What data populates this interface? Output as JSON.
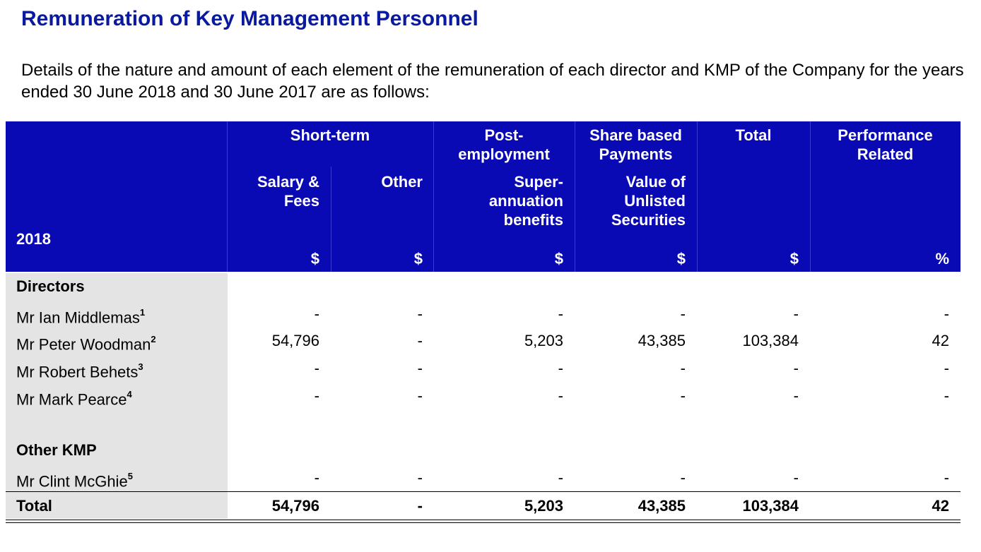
{
  "title": "Remuneration of Key Management Personnel",
  "intro": "Details of the nature and amount of each element of the remuneration of each director and KMP of the Company for the years ended 30 June 2018 and 30 June 2017 are as follows:",
  "header": {
    "year": "2018",
    "groups": {
      "short_term": "Short-term",
      "post_employment": "Post-\nemployment",
      "share_based": "Share based\nPayments",
      "total": "Total",
      "performance": "Performance\nRelated"
    },
    "columns": {
      "salary": "Salary &\nFees",
      "other": "Other",
      "super": "Super-\nannuation\nbenefits",
      "unlisted": "Value of\nUnlisted\nSecurities"
    },
    "units": [
      "$",
      "$",
      "$",
      "$",
      "$",
      "%"
    ]
  },
  "sections": {
    "directors": "Directors",
    "other_kmp": "Other KMP"
  },
  "rows": [
    {
      "name": "Mr Ian Middlemas",
      "note": "1",
      "values": [
        "-",
        "-",
        "-",
        "-",
        "-",
        "-"
      ]
    },
    {
      "name": "Mr Peter Woodman",
      "note": "2",
      "values": [
        "54,796",
        "-",
        "5,203",
        "43,385",
        "103,384",
        "42"
      ]
    },
    {
      "name": "Mr Robert Behets",
      "note": "3",
      "values": [
        "-",
        "-",
        "-",
        "-",
        "-",
        "-"
      ]
    },
    {
      "name": "Mr Mark Pearce",
      "note": "4",
      "values": [
        "-",
        "-",
        "-",
        "-",
        "-",
        "-"
      ]
    },
    {
      "name": "Mr Clint McGhie",
      "note": "5",
      "values": [
        "-",
        "-",
        "-",
        "-",
        "-",
        "-"
      ]
    }
  ],
  "total": {
    "label": "Total",
    "values": [
      "54,796",
      "-",
      "5,203",
      "43,385",
      "103,384",
      "42"
    ]
  }
}
